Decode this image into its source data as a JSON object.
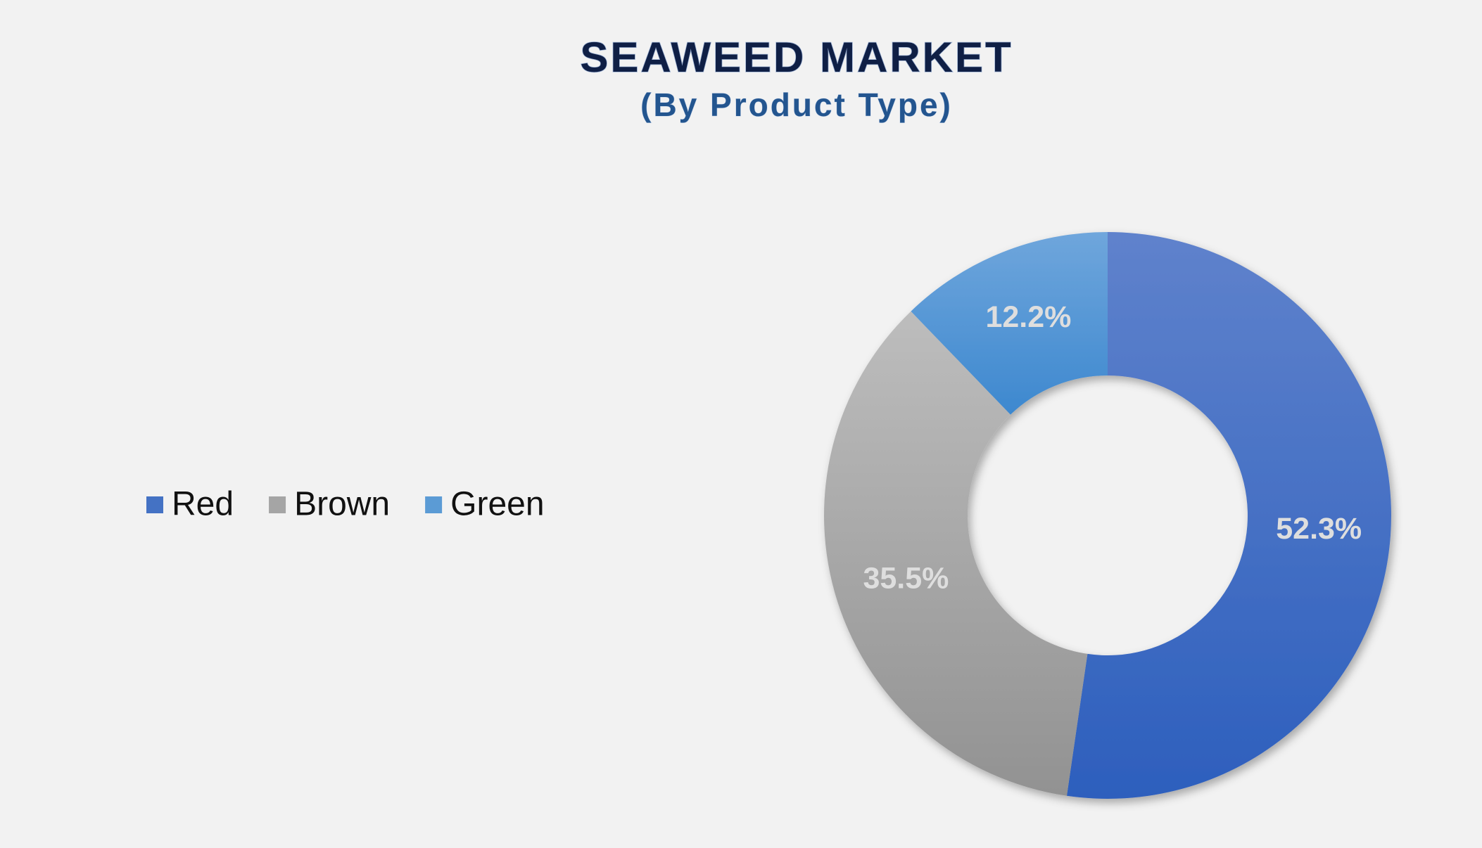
{
  "chart_data": {
    "type": "donut",
    "title": "SEAWEED MARKET",
    "subtitle": "(By Product Type)",
    "categories": [
      "Red",
      "Brown",
      "Green"
    ],
    "values": [
      52.3,
      35.5,
      12.2
    ],
    "value_labels": [
      "52.3%",
      "35.5%",
      "12.2%"
    ],
    "colors": [
      "#4472c4",
      "#a5a5a5",
      "#5b9bd5"
    ],
    "legend": "left"
  }
}
